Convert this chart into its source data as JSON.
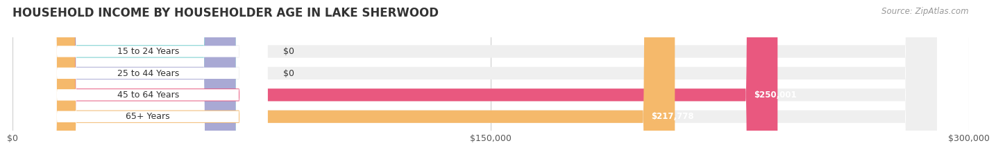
{
  "title": "HOUSEHOLD INCOME BY HOUSEHOLDER AGE IN LAKE SHERWOOD",
  "source": "Source: ZipAtlas.com",
  "categories": [
    "15 to 24 Years",
    "25 to 44 Years",
    "45 to 64 Years",
    "65+ Years"
  ],
  "values": [
    0,
    0,
    250001,
    217778
  ],
  "bar_colors": [
    "#6ecece",
    "#a9a9d4",
    "#e9587f",
    "#f5b96b"
  ],
  "bar_bg_color": "#efefef",
  "value_labels": [
    "$0",
    "$0",
    "$250,001",
    "$217,778"
  ],
  "xlim": [
    0,
    300000
  ],
  "xticks": [
    0,
    150000,
    300000
  ],
  "xticklabels": [
    "$0",
    "$150,000",
    "$300,000"
  ],
  "title_fontsize": 12,
  "source_fontsize": 8.5,
  "label_fontsize": 9,
  "tick_fontsize": 9,
  "bar_height": 0.58,
  "background_color": "#ffffff",
  "small_bar_width": 80000
}
